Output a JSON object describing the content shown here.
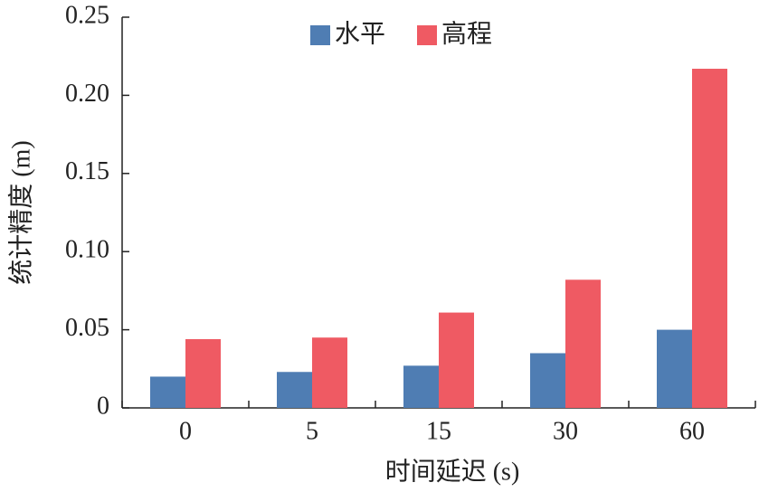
{
  "chart_data": {
    "type": "bar",
    "x_label": "时间延迟 (s)",
    "y_label": "统计精度 (m)",
    "categories": [
      "0",
      "5",
      "15",
      "30",
      "60"
    ],
    "series": [
      {
        "name": "水平",
        "color": "#4f7db3",
        "values": [
          0.02,
          0.023,
          0.027,
          0.035,
          0.05
        ]
      },
      {
        "name": "高程",
        "color": "#ef5a63",
        "values": [
          0.044,
          0.045,
          0.061,
          0.082,
          0.217
        ]
      }
    ],
    "ylim": [
      0,
      0.25
    ],
    "yticks": [
      0,
      0.05,
      {
        "value": 0.1,
        "label": "0.10"
      },
      0.15,
      {
        "value": 0.2,
        "label": "0.20"
      },
      0.25
    ],
    "legend": "top"
  }
}
